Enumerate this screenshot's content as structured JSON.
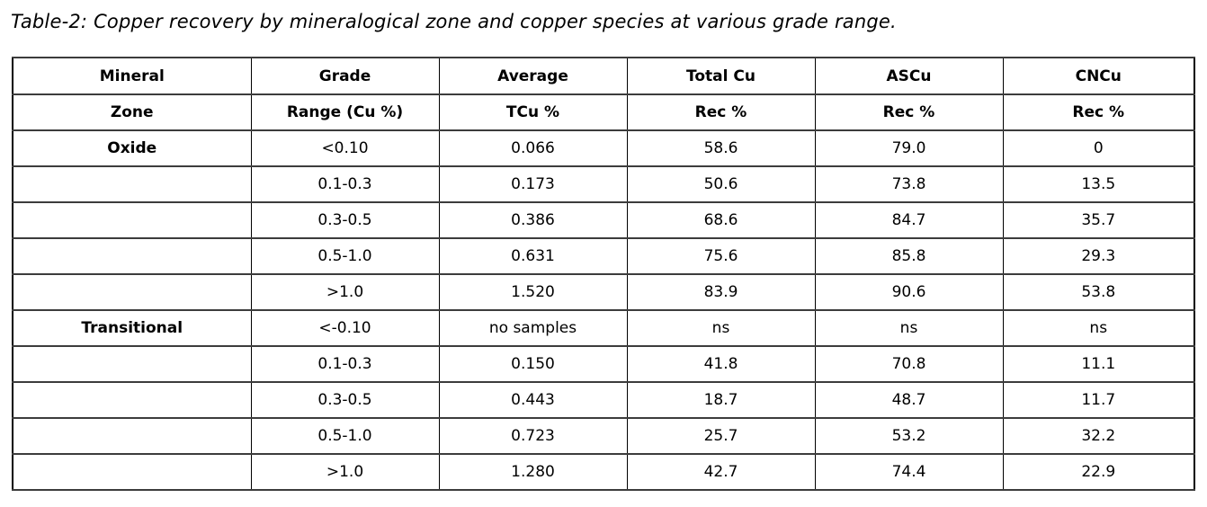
{
  "title": "Table-2: Copper recovery by mineralogical zone and copper species at various grade range.",
  "table": {
    "header_row1": [
      "Mineral",
      "Grade",
      "Average",
      "Total Cu",
      "ASCu",
      "CNCu"
    ],
    "header_row2": [
      "Zone",
      "Range (Cu %)",
      "TCu %",
      "Rec %",
      "Rec %",
      "Rec %"
    ],
    "rows": [
      [
        "Oxide",
        "<0.10",
        "0.066",
        "58.6",
        "79.0",
        "0"
      ],
      [
        "",
        "0.1-0.3",
        "0.173",
        "50.6",
        "73.8",
        "13.5"
      ],
      [
        "",
        "0.3-0.5",
        "0.386",
        "68.6",
        "84.7",
        "35.7"
      ],
      [
        "",
        "0.5-1.0",
        "0.631",
        "75.6",
        "85.8",
        "29.3"
      ],
      [
        "",
        ">1.0",
        "1.520",
        "83.9",
        "90.6",
        "53.8"
      ],
      [
        "Transitional",
        "<-0.10",
        "no samples",
        "ns",
        "ns",
        "ns"
      ],
      [
        "",
        "0.1-0.3",
        "0.150",
        "41.8",
        "70.8",
        "11.1"
      ],
      [
        "",
        "0.3-0.5",
        "0.443",
        "18.7",
        "48.7",
        "11.7"
      ],
      [
        "",
        "0.5-1.0",
        "0.723",
        "25.7",
        "53.2",
        "32.2"
      ],
      [
        "",
        ">1.0",
        "1.280",
        "42.7",
        "74.4",
        "22.9"
      ]
    ],
    "colors": {
      "text": "#000000",
      "background": "#ffffff",
      "outer_border": "#000000",
      "row_line": "#3c3c3c"
    }
  }
}
